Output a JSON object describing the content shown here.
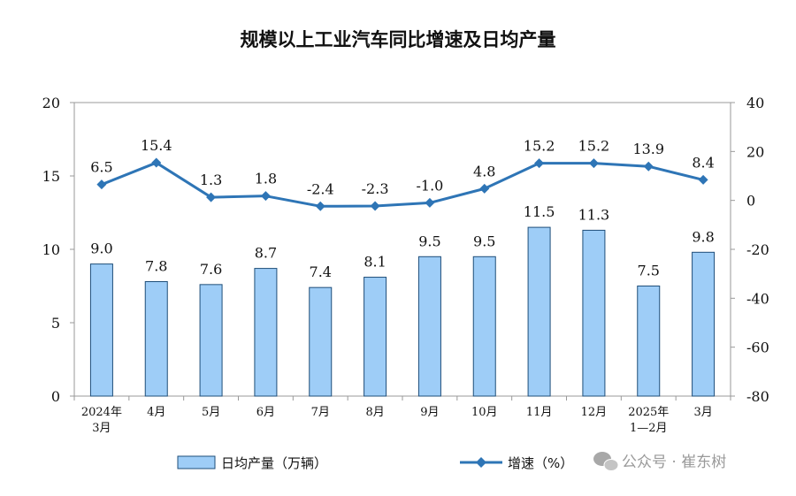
{
  "chart_data": {
    "type": "bar+line",
    "title": "规模以上工业汽车同比增速及日均产量",
    "categories": [
      [
        "2024年",
        "3月"
      ],
      [
        "4月"
      ],
      [
        "5月"
      ],
      [
        "6月"
      ],
      [
        "7月"
      ],
      [
        "8月"
      ],
      [
        "9月"
      ],
      [
        "10月"
      ],
      [
        "11月"
      ],
      [
        "12月"
      ],
      [
        "2025年",
        "1—2月"
      ],
      [
        "3月"
      ]
    ],
    "series": [
      {
        "name": "日均产量（万辆）",
        "type": "bar",
        "axis": "left",
        "color": "#9ecdf7",
        "values": [
          9.0,
          7.8,
          7.6,
          8.7,
          7.4,
          8.1,
          9.5,
          9.5,
          11.5,
          11.3,
          7.5,
          9.8
        ],
        "labels": [
          "9.0",
          "7.8",
          "7.6",
          "8.7",
          "7.4",
          "8.1",
          "9.5",
          "9.5",
          "11.5",
          "11.3",
          "7.5",
          "9.8"
        ]
      },
      {
        "name": "增速（%）",
        "type": "line",
        "axis": "right",
        "color": "#2e75b6",
        "values": [
          6.5,
          15.4,
          1.3,
          1.8,
          -2.4,
          -2.3,
          -1.0,
          4.8,
          15.2,
          15.2,
          13.9,
          8.4
        ],
        "labels": [
          "6.5",
          "15.4",
          "1.3",
          "1.8",
          "-2.4",
          "-2.3",
          "-1.0",
          "4.8",
          "15.2",
          "15.2",
          "13.9",
          "8.4"
        ]
      }
    ],
    "y_left": {
      "range": [
        0,
        20
      ],
      "ticks": [
        "0",
        "5",
        "10",
        "15",
        "20"
      ]
    },
    "y_right": {
      "range": [
        -80,
        40
      ],
      "ticks": [
        "-80",
        "-60",
        "-40",
        "-20",
        "0",
        "20",
        "40"
      ]
    },
    "legend": "bottom",
    "grid": false
  },
  "watermark": {
    "text": "公众号 · 崔东树",
    "icon": "wechat-icon"
  }
}
